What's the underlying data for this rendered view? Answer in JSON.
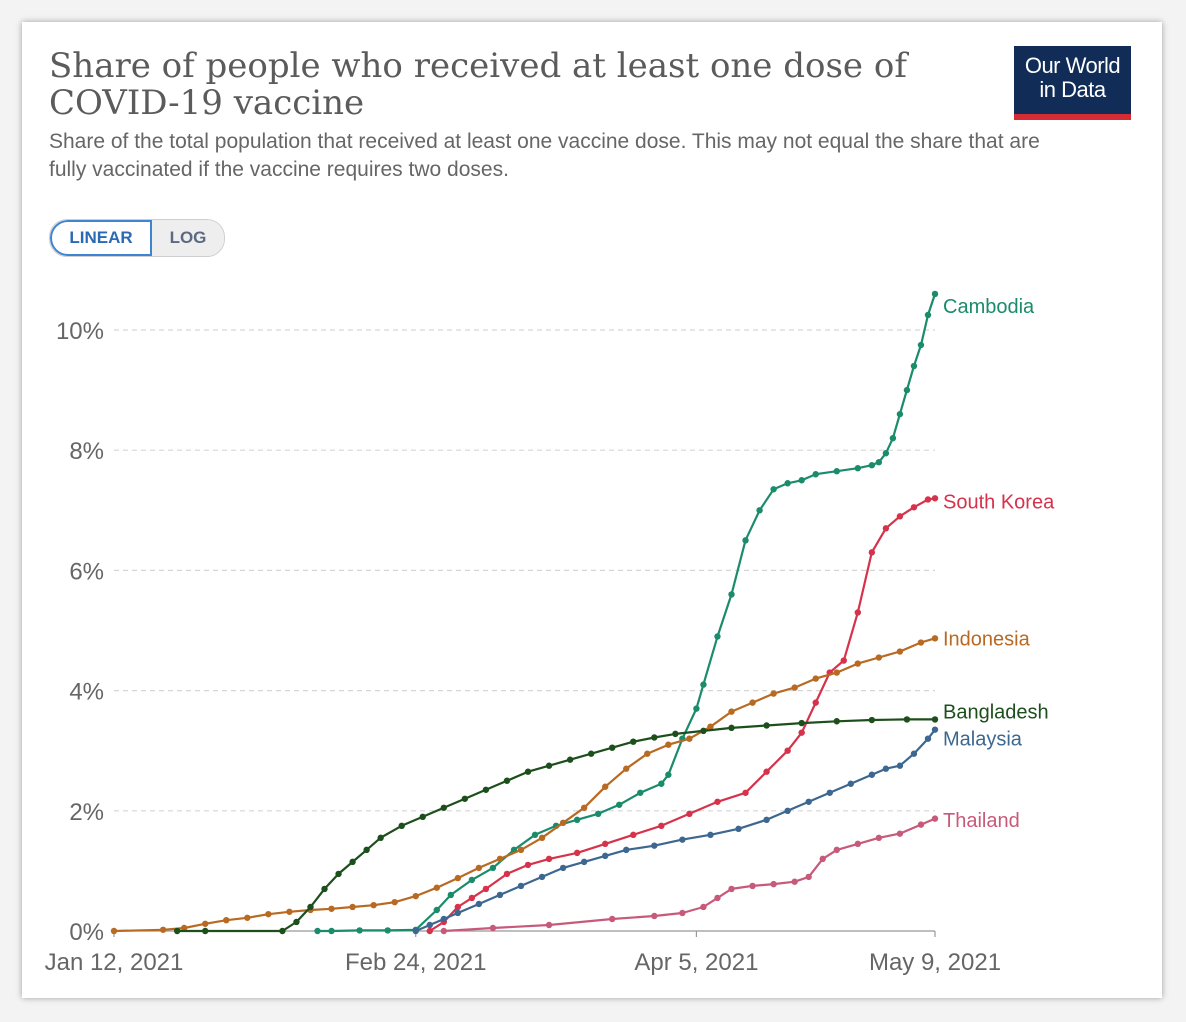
{
  "header": {
    "title": "Share of people who received at least one dose of COVID-19 vaccine",
    "subtitle": "Share of the total population that received at least one vaccine dose. This may not equal the share that are fully vaccinated if the vaccine requires two doses."
  },
  "logo": {
    "line1": "Our World",
    "line2": "in Data",
    "bg": "#102c57",
    "accent": "#d42b35"
  },
  "controls": {
    "linear_label": "LINEAR",
    "log_label": "LOG",
    "selected": "linear"
  },
  "chart_data": {
    "type": "line",
    "title": "Share of people who received at least one dose of COVID-19 vaccine",
    "xlabel": "",
    "ylabel": "",
    "ylim": [
      0,
      10.6
    ],
    "y_ticks": [
      0,
      2,
      4,
      6,
      8,
      10
    ],
    "y_tick_labels": [
      "0%",
      "2%",
      "4%",
      "6%",
      "8%",
      "10%"
    ],
    "x_ticks": [
      "2021-01-12",
      "2021-02-24",
      "2021-04-05",
      "2021-05-09"
    ],
    "x_tick_labels": [
      "Jan 12, 2021",
      "Feb 24, 2021",
      "Apr 5, 2021",
      "May 9, 2021"
    ],
    "xlim": [
      "2021-01-12",
      "2021-05-09"
    ],
    "grid": "horizontal-dashed",
    "legend": "labels-at-line-end",
    "series": [
      {
        "name": "Cambodia",
        "color": "#1a8c6b",
        "points": [
          [
            "2021-02-10",
            0.0
          ],
          [
            "2021-02-12",
            0.0
          ],
          [
            "2021-02-16",
            0.01
          ],
          [
            "2021-02-20",
            0.01
          ],
          [
            "2021-02-24",
            0.02
          ],
          [
            "2021-02-27",
            0.35
          ],
          [
            "2021-03-01",
            0.6
          ],
          [
            "2021-03-04",
            0.85
          ],
          [
            "2021-03-07",
            1.05
          ],
          [
            "2021-03-10",
            1.35
          ],
          [
            "2021-03-13",
            1.6
          ],
          [
            "2021-03-16",
            1.75
          ],
          [
            "2021-03-19",
            1.85
          ],
          [
            "2021-03-22",
            1.95
          ],
          [
            "2021-03-25",
            2.1
          ],
          [
            "2021-03-28",
            2.3
          ],
          [
            "2021-03-31",
            2.45
          ],
          [
            "2021-04-01",
            2.6
          ],
          [
            "2021-04-03",
            3.2
          ],
          [
            "2021-04-05",
            3.7
          ],
          [
            "2021-04-06",
            4.1
          ],
          [
            "2021-04-08",
            4.9
          ],
          [
            "2021-04-10",
            5.6
          ],
          [
            "2021-04-12",
            6.5
          ],
          [
            "2021-04-14",
            7.0
          ],
          [
            "2021-04-16",
            7.35
          ],
          [
            "2021-04-18",
            7.45
          ],
          [
            "2021-04-20",
            7.5
          ],
          [
            "2021-04-22",
            7.6
          ],
          [
            "2021-04-25",
            7.65
          ],
          [
            "2021-04-28",
            7.7
          ],
          [
            "2021-04-30",
            7.75
          ],
          [
            "2021-05-01",
            7.8
          ],
          [
            "2021-05-02",
            7.95
          ],
          [
            "2021-05-03",
            8.2
          ],
          [
            "2021-05-04",
            8.6
          ],
          [
            "2021-05-05",
            9.0
          ],
          [
            "2021-05-06",
            9.4
          ],
          [
            "2021-05-07",
            9.75
          ],
          [
            "2021-05-08",
            10.25
          ],
          [
            "2021-05-09",
            10.6
          ]
        ]
      },
      {
        "name": "South Korea",
        "color": "#d6324b",
        "points": [
          [
            "2021-02-26",
            0.0
          ],
          [
            "2021-02-28",
            0.15
          ],
          [
            "2021-03-02",
            0.4
          ],
          [
            "2021-03-04",
            0.55
          ],
          [
            "2021-03-06",
            0.7
          ],
          [
            "2021-03-09",
            0.95
          ],
          [
            "2021-03-12",
            1.1
          ],
          [
            "2021-03-15",
            1.2
          ],
          [
            "2021-03-19",
            1.3
          ],
          [
            "2021-03-23",
            1.45
          ],
          [
            "2021-03-27",
            1.6
          ],
          [
            "2021-03-31",
            1.75
          ],
          [
            "2021-04-04",
            1.95
          ],
          [
            "2021-04-08",
            2.15
          ],
          [
            "2021-04-12",
            2.3
          ],
          [
            "2021-04-15",
            2.65
          ],
          [
            "2021-04-18",
            3.0
          ],
          [
            "2021-04-20",
            3.3
          ],
          [
            "2021-04-22",
            3.8
          ],
          [
            "2021-04-24",
            4.3
          ],
          [
            "2021-04-26",
            4.5
          ],
          [
            "2021-04-28",
            5.3
          ],
          [
            "2021-04-30",
            6.3
          ],
          [
            "2021-05-02",
            6.7
          ],
          [
            "2021-05-04",
            6.9
          ],
          [
            "2021-05-06",
            7.05
          ],
          [
            "2021-05-08",
            7.18
          ],
          [
            "2021-05-09",
            7.2
          ]
        ]
      },
      {
        "name": "Indonesia",
        "color": "#b86a23",
        "points": [
          [
            "2021-01-12",
            0.0
          ],
          [
            "2021-01-19",
            0.02
          ],
          [
            "2021-01-22",
            0.05
          ],
          [
            "2021-01-25",
            0.12
          ],
          [
            "2021-01-28",
            0.18
          ],
          [
            "2021-01-31",
            0.22
          ],
          [
            "2021-02-03",
            0.28
          ],
          [
            "2021-02-06",
            0.32
          ],
          [
            "2021-02-09",
            0.35
          ],
          [
            "2021-02-12",
            0.37
          ],
          [
            "2021-02-15",
            0.4
          ],
          [
            "2021-02-18",
            0.43
          ],
          [
            "2021-02-21",
            0.48
          ],
          [
            "2021-02-24",
            0.58
          ],
          [
            "2021-02-27",
            0.72
          ],
          [
            "2021-03-02",
            0.88
          ],
          [
            "2021-03-05",
            1.05
          ],
          [
            "2021-03-08",
            1.2
          ],
          [
            "2021-03-11",
            1.35
          ],
          [
            "2021-03-14",
            1.55
          ],
          [
            "2021-03-17",
            1.8
          ],
          [
            "2021-03-20",
            2.05
          ],
          [
            "2021-03-23",
            2.4
          ],
          [
            "2021-03-26",
            2.7
          ],
          [
            "2021-03-29",
            2.95
          ],
          [
            "2021-04-01",
            3.1
          ],
          [
            "2021-04-04",
            3.2
          ],
          [
            "2021-04-07",
            3.4
          ],
          [
            "2021-04-10",
            3.65
          ],
          [
            "2021-04-13",
            3.8
          ],
          [
            "2021-04-16",
            3.95
          ],
          [
            "2021-04-19",
            4.05
          ],
          [
            "2021-04-22",
            4.2
          ],
          [
            "2021-04-25",
            4.3
          ],
          [
            "2021-04-28",
            4.45
          ],
          [
            "2021-05-01",
            4.55
          ],
          [
            "2021-05-04",
            4.65
          ],
          [
            "2021-05-07",
            4.8
          ],
          [
            "2021-05-09",
            4.87
          ]
        ]
      },
      {
        "name": "Bangladesh",
        "color": "#1c4f1c",
        "points": [
          [
            "2021-01-21",
            0.0
          ],
          [
            "2021-01-25",
            0.0
          ],
          [
            "2021-02-05",
            0.0
          ],
          [
            "2021-02-07",
            0.15
          ],
          [
            "2021-02-09",
            0.4
          ],
          [
            "2021-02-11",
            0.7
          ],
          [
            "2021-02-13",
            0.95
          ],
          [
            "2021-02-15",
            1.15
          ],
          [
            "2021-02-17",
            1.35
          ],
          [
            "2021-02-19",
            1.55
          ],
          [
            "2021-02-22",
            1.75
          ],
          [
            "2021-02-25",
            1.9
          ],
          [
            "2021-02-28",
            2.05
          ],
          [
            "2021-03-03",
            2.2
          ],
          [
            "2021-03-06",
            2.35
          ],
          [
            "2021-03-09",
            2.5
          ],
          [
            "2021-03-12",
            2.65
          ],
          [
            "2021-03-15",
            2.75
          ],
          [
            "2021-03-18",
            2.85
          ],
          [
            "2021-03-21",
            2.95
          ],
          [
            "2021-03-24",
            3.05
          ],
          [
            "2021-03-27",
            3.15
          ],
          [
            "2021-03-30",
            3.22
          ],
          [
            "2021-04-02",
            3.28
          ],
          [
            "2021-04-06",
            3.33
          ],
          [
            "2021-04-10",
            3.38
          ],
          [
            "2021-04-15",
            3.42
          ],
          [
            "2021-04-20",
            3.46
          ],
          [
            "2021-04-25",
            3.49
          ],
          [
            "2021-04-30",
            3.51
          ],
          [
            "2021-05-05",
            3.52
          ],
          [
            "2021-05-09",
            3.52
          ]
        ]
      },
      {
        "name": "Malaysia",
        "color": "#3c6790",
        "points": [
          [
            "2021-02-24",
            0.0
          ],
          [
            "2021-02-26",
            0.1
          ],
          [
            "2021-02-28",
            0.2
          ],
          [
            "2021-03-02",
            0.3
          ],
          [
            "2021-03-05",
            0.45
          ],
          [
            "2021-03-08",
            0.6
          ],
          [
            "2021-03-11",
            0.75
          ],
          [
            "2021-03-14",
            0.9
          ],
          [
            "2021-03-17",
            1.05
          ],
          [
            "2021-03-20",
            1.15
          ],
          [
            "2021-03-23",
            1.25
          ],
          [
            "2021-03-26",
            1.35
          ],
          [
            "2021-03-30",
            1.42
          ],
          [
            "2021-04-03",
            1.52
          ],
          [
            "2021-04-07",
            1.6
          ],
          [
            "2021-04-11",
            1.7
          ],
          [
            "2021-04-15",
            1.85
          ],
          [
            "2021-04-18",
            2.0
          ],
          [
            "2021-04-21",
            2.15
          ],
          [
            "2021-04-24",
            2.3
          ],
          [
            "2021-04-27",
            2.45
          ],
          [
            "2021-04-30",
            2.6
          ],
          [
            "2021-05-02",
            2.7
          ],
          [
            "2021-05-04",
            2.75
          ],
          [
            "2021-05-06",
            2.95
          ],
          [
            "2021-05-08",
            3.2
          ],
          [
            "2021-05-09",
            3.35
          ]
        ]
      },
      {
        "name": "Thailand",
        "color": "#c75a7a",
        "points": [
          [
            "2021-02-28",
            0.0
          ],
          [
            "2021-03-07",
            0.05
          ],
          [
            "2021-03-15",
            0.1
          ],
          [
            "2021-03-24",
            0.2
          ],
          [
            "2021-03-30",
            0.25
          ],
          [
            "2021-04-03",
            0.3
          ],
          [
            "2021-04-06",
            0.4
          ],
          [
            "2021-04-08",
            0.55
          ],
          [
            "2021-04-10",
            0.7
          ],
          [
            "2021-04-13",
            0.75
          ],
          [
            "2021-04-16",
            0.78
          ],
          [
            "2021-04-19",
            0.82
          ],
          [
            "2021-04-21",
            0.9
          ],
          [
            "2021-04-23",
            1.2
          ],
          [
            "2021-04-25",
            1.35
          ],
          [
            "2021-04-28",
            1.45
          ],
          [
            "2021-05-01",
            1.55
          ],
          [
            "2021-05-04",
            1.62
          ],
          [
            "2021-05-07",
            1.77
          ],
          [
            "2021-05-09",
            1.87
          ]
        ]
      }
    ],
    "label_y_positions": {
      "Cambodia": 10.4,
      "South Korea": 7.15,
      "Indonesia": 4.87,
      "Bangladesh": 3.65,
      "Malaysia": 3.2,
      "Thailand": 1.85
    }
  }
}
